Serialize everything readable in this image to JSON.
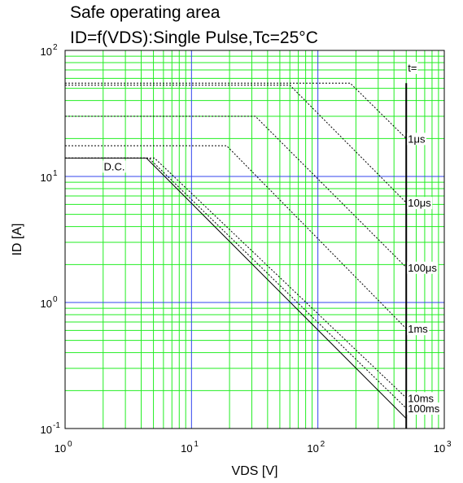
{
  "chart_data": {
    "type": "line",
    "title": "Safe operating area",
    "subtitle": "ID=f(VDS):Single Pulse,Tc=25°C",
    "xlabel": "VDS [V]",
    "ylabel": "ID [A]",
    "xscale": "log",
    "yscale": "log",
    "xlim": [
      1,
      1000
    ],
    "ylim": [
      0.1,
      100
    ],
    "grid": true,
    "x_ticks": [
      {
        "base": "10",
        "exp": "0"
      },
      {
        "base": "10",
        "exp": "1"
      },
      {
        "base": "10",
        "exp": "2"
      },
      {
        "base": "10",
        "exp": "3"
      }
    ],
    "y_ticks": [
      {
        "base": "10",
        "exp": "-1"
      },
      {
        "base": "10",
        "exp": "0"
      },
      {
        "base": "10",
        "exp": "1"
      },
      {
        "base": "10",
        "exp": "2"
      }
    ],
    "legend_header": "t=",
    "series": [
      {
        "name": "1μs",
        "style": "dotted",
        "x": [
          1,
          180,
          500
        ],
        "y": [
          55,
          55,
          20
        ]
      },
      {
        "name": "10μs",
        "style": "dotted",
        "x": [
          1,
          60,
          500
        ],
        "y": [
          53,
          53,
          6.2
        ]
      },
      {
        "name": "100μs",
        "style": "dotted",
        "x": [
          1,
          32,
          500
        ],
        "y": [
          30,
          30,
          1.9
        ]
      },
      {
        "name": "1ms",
        "style": "dotted",
        "x": [
          1,
          19,
          500
        ],
        "y": [
          17.5,
          17.5,
          0.62
        ]
      },
      {
        "name": "10ms",
        "style": "dotted",
        "x": [
          1,
          5.1,
          500
        ],
        "y": [
          14,
          14,
          0.175
        ]
      },
      {
        "name": "100ms",
        "style": "dotted",
        "x": [
          1,
          4.6,
          500
        ],
        "y": [
          14,
          14,
          0.145
        ]
      },
      {
        "name": "D.C.",
        "style": "solid",
        "x": [
          1,
          4.4,
          500
        ],
        "y": [
          14,
          14,
          0.12
        ]
      }
    ],
    "vds_limit": 500
  }
}
